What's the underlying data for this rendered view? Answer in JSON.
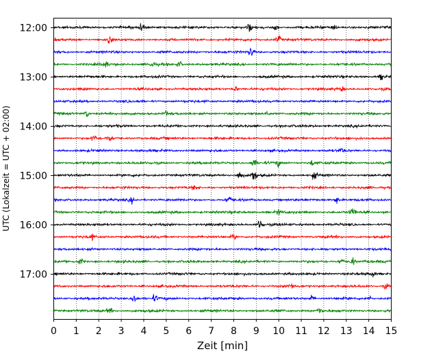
{
  "chart_data": {
    "type": "line",
    "title": "",
    "xlabel": "Zeit  [min]",
    "ylabel": "UTC (Lokalzeit = UTC + 02:00)",
    "xlim": [
      0,
      15
    ],
    "x_ticks": [
      0,
      1,
      2,
      3,
      4,
      5,
      6,
      7,
      8,
      9,
      10,
      11,
      12,
      13,
      14,
      15
    ],
    "x_tick_labels": [
      "0",
      "1",
      "2",
      "3",
      "4",
      "5",
      "6",
      "7",
      "8",
      "9",
      "10",
      "11",
      "12",
      "13",
      "14",
      "15"
    ],
    "y_tick_labels": [
      "12:00",
      "13:00",
      "14:00",
      "15:00",
      "16:00",
      "17:00"
    ],
    "grid": "x-dotted",
    "trace_colors": [
      "#000000",
      "#ff0000",
      "#0000ff",
      "#008000"
    ],
    "traces": [
      {
        "start": "12:00",
        "events": [
          [
            3.9,
            1.6
          ],
          [
            8.7,
            1.2
          ],
          [
            9.9,
            1.0
          ],
          [
            12.5,
            1.0
          ]
        ]
      },
      {
        "start": "12:15",
        "events": [
          [
            2.5,
            1.8
          ],
          [
            10.0,
            1.4
          ]
        ]
      },
      {
        "start": "12:30",
        "events": [
          [
            8.8,
            2.0
          ]
        ]
      },
      {
        "start": "12:45",
        "events": [
          [
            2.3,
            1.4
          ],
          [
            4.4,
            1.1
          ],
          [
            5.6,
            0.9
          ]
        ]
      },
      {
        "start": "13:00",
        "events": [
          [
            14.6,
            1.2
          ]
        ]
      },
      {
        "start": "13:15",
        "events": [
          [
            8.1,
            0.9
          ],
          [
            12.8,
            0.8
          ]
        ]
      },
      {
        "start": "13:30",
        "events": []
      },
      {
        "start": "13:45",
        "events": [
          [
            1.5,
            1.3
          ],
          [
            5.0,
            1.0
          ],
          [
            9.5,
            0.9
          ]
        ]
      },
      {
        "start": "14:00",
        "events": []
      },
      {
        "start": "14:15",
        "events": [
          [
            1.8,
            1.2
          ],
          [
            2.5,
            1.1
          ]
        ]
      },
      {
        "start": "14:30",
        "events": [
          [
            12.8,
            0.8
          ]
        ]
      },
      {
        "start": "14:45",
        "events": [
          [
            8.9,
            1.4
          ],
          [
            10.0,
            1.0
          ],
          [
            11.5,
            0.9
          ]
        ]
      },
      {
        "start": "15:00",
        "events": [
          [
            8.3,
            1.9
          ],
          [
            8.9,
            2.2
          ],
          [
            11.6,
            1.2
          ]
        ]
      },
      {
        "start": "15:15",
        "events": [
          [
            6.3,
            0.9
          ]
        ]
      },
      {
        "start": "15:30",
        "events": [
          [
            3.5,
            1.0
          ],
          [
            7.8,
            1.4
          ],
          [
            12.6,
            1.3
          ]
        ]
      },
      {
        "start": "15:45",
        "events": [
          [
            13.3,
            1.6
          ],
          [
            10.0,
            0.9
          ]
        ]
      },
      {
        "start": "16:00",
        "events": [
          [
            9.2,
            2.2
          ]
        ]
      },
      {
        "start": "16:15",
        "events": [
          [
            1.7,
            1.0
          ],
          [
            8.0,
            0.9
          ]
        ]
      },
      {
        "start": "16:30",
        "events": []
      },
      {
        "start": "16:45",
        "events": [
          [
            1.2,
            1.0
          ],
          [
            12.8,
            1.1
          ],
          [
            13.3,
            1.3
          ]
        ]
      },
      {
        "start": "17:00",
        "events": [
          [
            14.2,
            1.0
          ]
        ]
      },
      {
        "start": "17:15",
        "events": [
          [
            10.6,
            0.9
          ],
          [
            14.8,
            1.0
          ]
        ]
      },
      {
        "start": "17:30",
        "events": [
          [
            3.6,
            1.5
          ],
          [
            4.5,
            1.1
          ],
          [
            11.5,
            1.0
          ],
          [
            14.0,
            0.9
          ]
        ]
      },
      {
        "start": "17:45",
        "events": [
          [
            2.5,
            1.1
          ],
          [
            11.8,
            1.4
          ]
        ]
      }
    ]
  }
}
